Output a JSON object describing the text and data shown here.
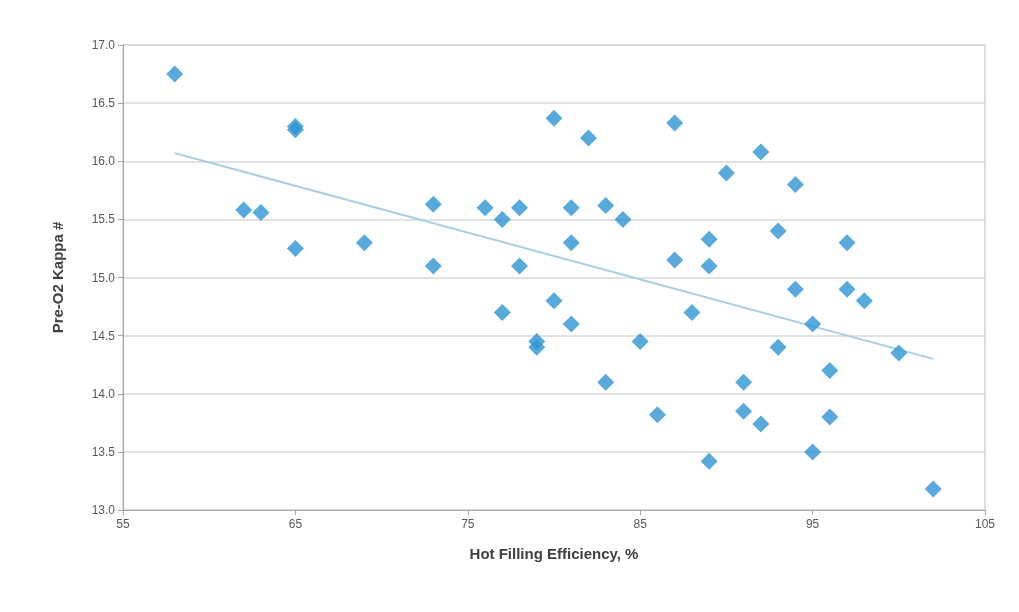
{
  "chart_data": {
    "type": "scatter",
    "xlabel": "Hot Filling Efficiency, %",
    "ylabel": "Pre-O2 Kappa #",
    "xlim": [
      55,
      105
    ],
    "xticks": [
      55,
      65,
      75,
      85,
      95,
      105
    ],
    "ylim": [
      13,
      17
    ],
    "yticks": [
      {
        "value": 13,
        "label": "13.0"
      },
      {
        "value": 13.5,
        "label": "13.5"
      },
      {
        "value": 14,
        "label": "14.0"
      },
      {
        "value": 14.5,
        "label": "14.5"
      },
      {
        "value": 15,
        "label": "15.0"
      },
      {
        "value": 15.5,
        "label": "15.5"
      },
      {
        "value": 16,
        "label": "16.0"
      },
      {
        "value": 16.5,
        "label": "16.5"
      },
      {
        "value": 17,
        "label": "17.0"
      }
    ],
    "grid": "y",
    "marker": "diamond",
    "series": [
      {
        "color": "#2e95d3",
        "x": [
          58,
          62,
          63,
          65,
          65,
          65,
          69,
          73,
          73,
          76,
          77,
          77,
          78,
          78,
          79,
          79,
          80,
          80,
          81,
          81,
          81,
          82,
          83,
          83,
          84,
          85,
          86,
          87,
          87,
          88,
          89,
          89,
          89,
          90,
          91,
          91,
          92,
          92,
          93,
          93,
          94,
          94,
          95,
          95,
          96,
          96,
          97,
          97,
          98,
          100,
          102
        ],
        "values": [
          16.75,
          15.58,
          15.56,
          16.3,
          16.27,
          15.25,
          15.3,
          15.63,
          15.1,
          15.6,
          15.5,
          14.7,
          15.6,
          15.1,
          14.45,
          14.4,
          16.37,
          14.8,
          15.6,
          15.3,
          14.6,
          16.2,
          15.62,
          14.1,
          15.5,
          14.45,
          13.82,
          16.33,
          15.15,
          14.7,
          15.33,
          15.1,
          13.42,
          15.9,
          14.1,
          13.85,
          16.08,
          13.74,
          15.4,
          14.4,
          15.8,
          14.9,
          14.6,
          13.5,
          14.2,
          13.8,
          15.3,
          14.9,
          14.8,
          14.35,
          13.18
        ]
      },
      {
        "type": "line",
        "color": "#a8cfe0",
        "marker": "none",
        "x": [
          58,
          102
        ],
        "values": [
          16.07,
          14.3
        ]
      }
    ]
  }
}
